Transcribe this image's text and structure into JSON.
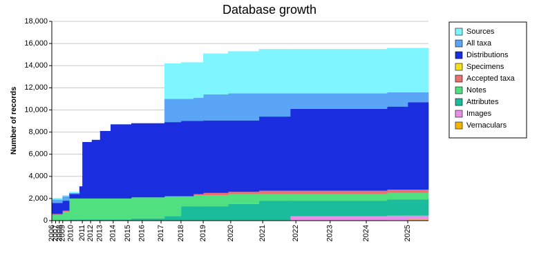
{
  "chart_data": {
    "type": "stacked-step-area",
    "title": "Database growth",
    "y_label": "Number of records",
    "x": [
      0,
      2.8,
      4.6,
      7.3,
      8.1,
      10.6,
      12.8,
      15.6,
      21.1,
      29.9,
      34.3,
      37.6,
      40.2,
      46.8,
      55.0,
      63.3,
      89.0,
      94.5
    ],
    "xlim": [
      0,
      100
    ],
    "xticks": [
      {
        "value": 0,
        "label": "2006"
      },
      {
        "value": 1,
        "label": "2007"
      },
      {
        "value": 2,
        "label": "2008"
      },
      {
        "value": 2.9,
        "label": "2009"
      },
      {
        "value": 5.1,
        "label": "2010"
      },
      {
        "value": 8.1,
        "label": "2011"
      },
      {
        "value": 10.3,
        "label": "2012"
      },
      {
        "value": 12.8,
        "label": "2013"
      },
      {
        "value": 16.3,
        "label": "2014"
      },
      {
        "value": 20.2,
        "label": "2015"
      },
      {
        "value": 24.0,
        "label": "2016"
      },
      {
        "value": 29.0,
        "label": "2017"
      },
      {
        "value": 34.3,
        "label": "2018"
      },
      {
        "value": 40.2,
        "label": "2019"
      },
      {
        "value": 47.5,
        "label": "2020"
      },
      {
        "value": 56.0,
        "label": "2021"
      },
      {
        "value": 64.8,
        "label": "2022"
      },
      {
        "value": 73.9,
        "label": "2023"
      },
      {
        "value": 83.5,
        "label": "2024"
      },
      {
        "value": 94.5,
        "label": "2025"
      }
    ],
    "ylim": [
      0,
      18000
    ],
    "yticks": [
      0,
      {
        "value": 2000,
        "label": "2,000"
      },
      {
        "value": 4000,
        "label": "4,000"
      },
      {
        "value": 6000,
        "label": "6,000"
      },
      {
        "value": 8000,
        "label": "8,000"
      },
      {
        "value": 10000,
        "label": "10,000"
      },
      {
        "value": 12000,
        "label": "12,000"
      },
      {
        "value": 14000,
        "label": "14,000"
      },
      {
        "value": 16000,
        "label": "16,000"
      },
      {
        "value": 18000,
        "label": "18,000"
      }
    ],
    "grid": true,
    "legend": "right",
    "series": [
      {
        "name": "Vernaculars",
        "color": "#f5b400",
        "values": [
          0,
          0,
          0,
          0,
          0,
          0,
          0,
          0,
          0,
          0,
          0,
          0,
          0,
          0,
          0,
          0,
          50,
          100
        ]
      },
      {
        "name": "Images",
        "color": "#e890e8",
        "values": [
          0,
          0,
          0,
          0,
          0,
          0,
          0,
          0,
          0,
          0,
          0,
          0,
          0,
          0,
          0,
          400,
          400,
          350
        ]
      },
      {
        "name": "Attributes",
        "color": "#1abc9c",
        "values": [
          0,
          0,
          100,
          100,
          100,
          100,
          100,
          100,
          200,
          400,
          1300,
          1300,
          1300,
          1500,
          1800,
          1400,
          1450,
          1450
        ]
      },
      {
        "name": "Notes",
        "color": "#50e080",
        "values": [
          500,
          800,
          1900,
          1900,
          1900,
          1900,
          1900,
          1900,
          1900,
          1800,
          900,
          1000,
          1000,
          900,
          600,
          600,
          600,
          600
        ]
      },
      {
        "name": "Accepted taxa",
        "color": "#e87070",
        "values": [
          100,
          100,
          0,
          0,
          0,
          0,
          0,
          0,
          0,
          0,
          0,
          100,
          200,
          200,
          300,
          300,
          300,
          300
        ]
      },
      {
        "name": "Specimens",
        "color": "#f5e020",
        "values": [
          0,
          0,
          0,
          0,
          0,
          0,
          0,
          0,
          0,
          0,
          0,
          0,
          0,
          0,
          0,
          0,
          0,
          0
        ]
      },
      {
        "name": "Distributions",
        "color": "#1a2ee0",
        "values": [
          1000,
          900,
          400,
          1100,
          5100,
          5300,
          6100,
          6700,
          6700,
          6700,
          6800,
          6600,
          6550,
          6450,
          6700,
          7400,
          7500,
          7900
        ]
      },
      {
        "name": "All taxa",
        "color": "#5aa5f5",
        "values": [
          300,
          400,
          100,
          0,
          0,
          0,
          0,
          0,
          0,
          2100,
          2000,
          2100,
          2350,
          2450,
          2100,
          1400,
          1300,
          900
        ]
      },
      {
        "name": "Sources",
        "color": "#7ef5ff",
        "values": [
          100,
          100,
          100,
          0,
          0,
          0,
          0,
          0,
          0,
          3200,
          3300,
          3200,
          3700,
          3800,
          4000,
          4000,
          4000,
          4000
        ]
      }
    ]
  }
}
